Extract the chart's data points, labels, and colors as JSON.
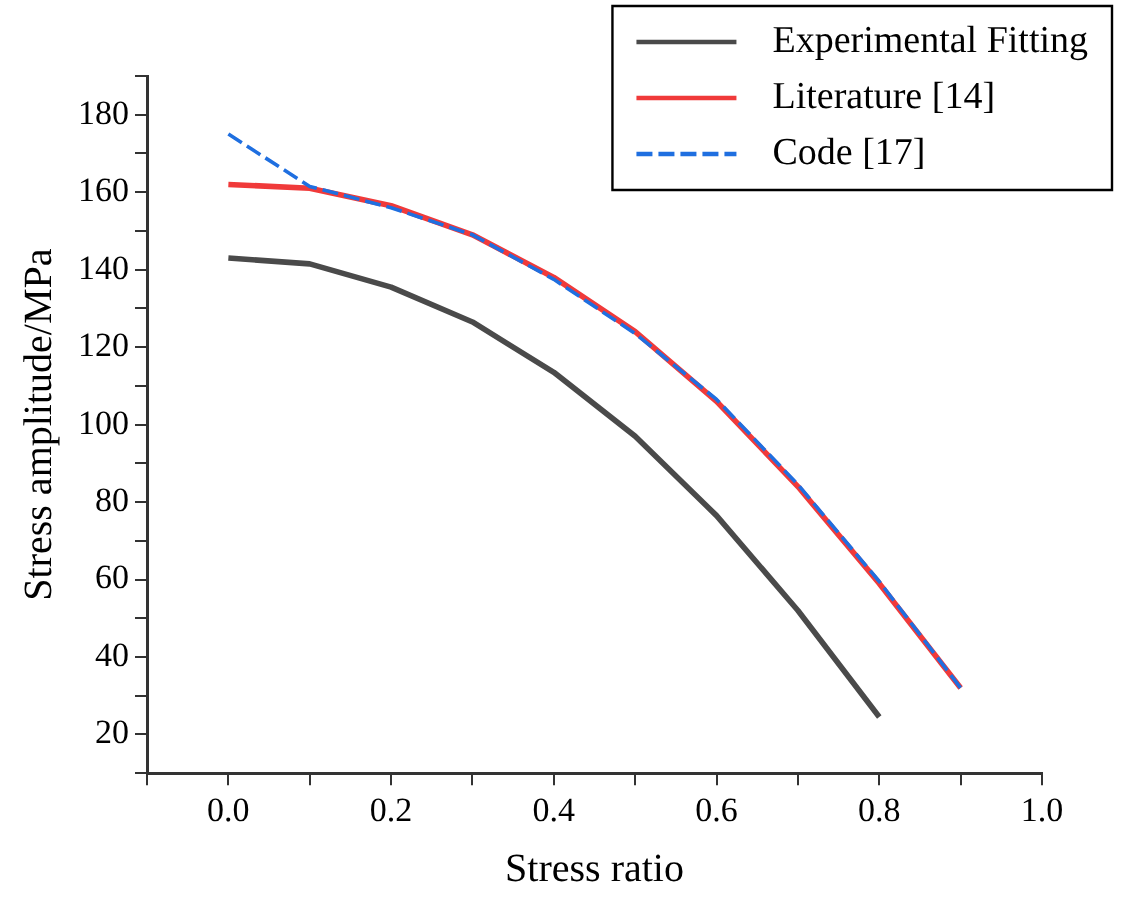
{
  "chart_data": {
    "type": "line",
    "xlabel": "Stress ratio",
    "ylabel": "Stress amplitude/MPa",
    "xlim": [
      -0.1,
      1.0
    ],
    "xticks": [
      {
        "value": -0.1,
        "label": null
      },
      {
        "value": 0,
        "label": "0.0"
      },
      {
        "value": 0.1,
        "label": null
      },
      0.2,
      {
        "value": 0.3,
        "label": null
      },
      0.4,
      {
        "value": 0.5,
        "label": null
      },
      0.6,
      {
        "value": 0.7,
        "label": null
      },
      0.8,
      {
        "value": 0.9,
        "label": null
      },
      {
        "value": 1.0,
        "label": "1.0"
      }
    ],
    "ylim": [
      10,
      190
    ],
    "yticks": [
      {
        "value": 10,
        "label": null
      },
      20,
      {
        "value": 30,
        "label": null
      },
      40,
      {
        "value": 50,
        "label": null
      },
      60,
      {
        "value": 70,
        "label": null
      },
      80,
      {
        "value": 90,
        "label": null
      },
      100,
      {
        "value": 110,
        "label": null
      },
      120,
      {
        "value": 130,
        "label": null
      },
      140,
      {
        "value": 150,
        "label": null
      },
      160,
      {
        "value": 170,
        "label": null
      },
      180,
      {
        "value": 190,
        "label": null
      }
    ],
    "grid": false,
    "legend": "top right",
    "marker": "none",
    "series": [
      {
        "name": "Experimental Fitting",
        "color": "#4a4a4a",
        "line_style": "solid",
        "x": [
          0,
          0.1,
          0.2,
          0.3,
          0.4,
          0.5,
          0.6,
          0.7,
          0.8
        ],
        "values": [
          143,
          141.5,
          135.5,
          126.5,
          113.5,
          97,
          76.5,
          52,
          24.5
        ]
      },
      {
        "name": "Literature [14]",
        "color": "#f03a3a",
        "line_style": "solid",
        "x": [
          0,
          0.1,
          0.2,
          0.3,
          0.4,
          0.5,
          0.6,
          0.7,
          0.8,
          0.9
        ],
        "values": [
          162,
          161,
          156.5,
          149,
          138,
          124,
          106,
          84,
          59,
          32
        ]
      },
      {
        "name": "Code [17]",
        "color": "#1f6fe0",
        "line_style": "dashed",
        "x": [
          0,
          0.1,
          0.2,
          0.3,
          0.4,
          0.5,
          0.6,
          0.7,
          0.8,
          0.9
        ],
        "values": [
          175,
          161.5,
          156,
          149,
          137.5,
          123.5,
          106.5,
          84.5,
          59.5,
          32
        ]
      }
    ]
  }
}
